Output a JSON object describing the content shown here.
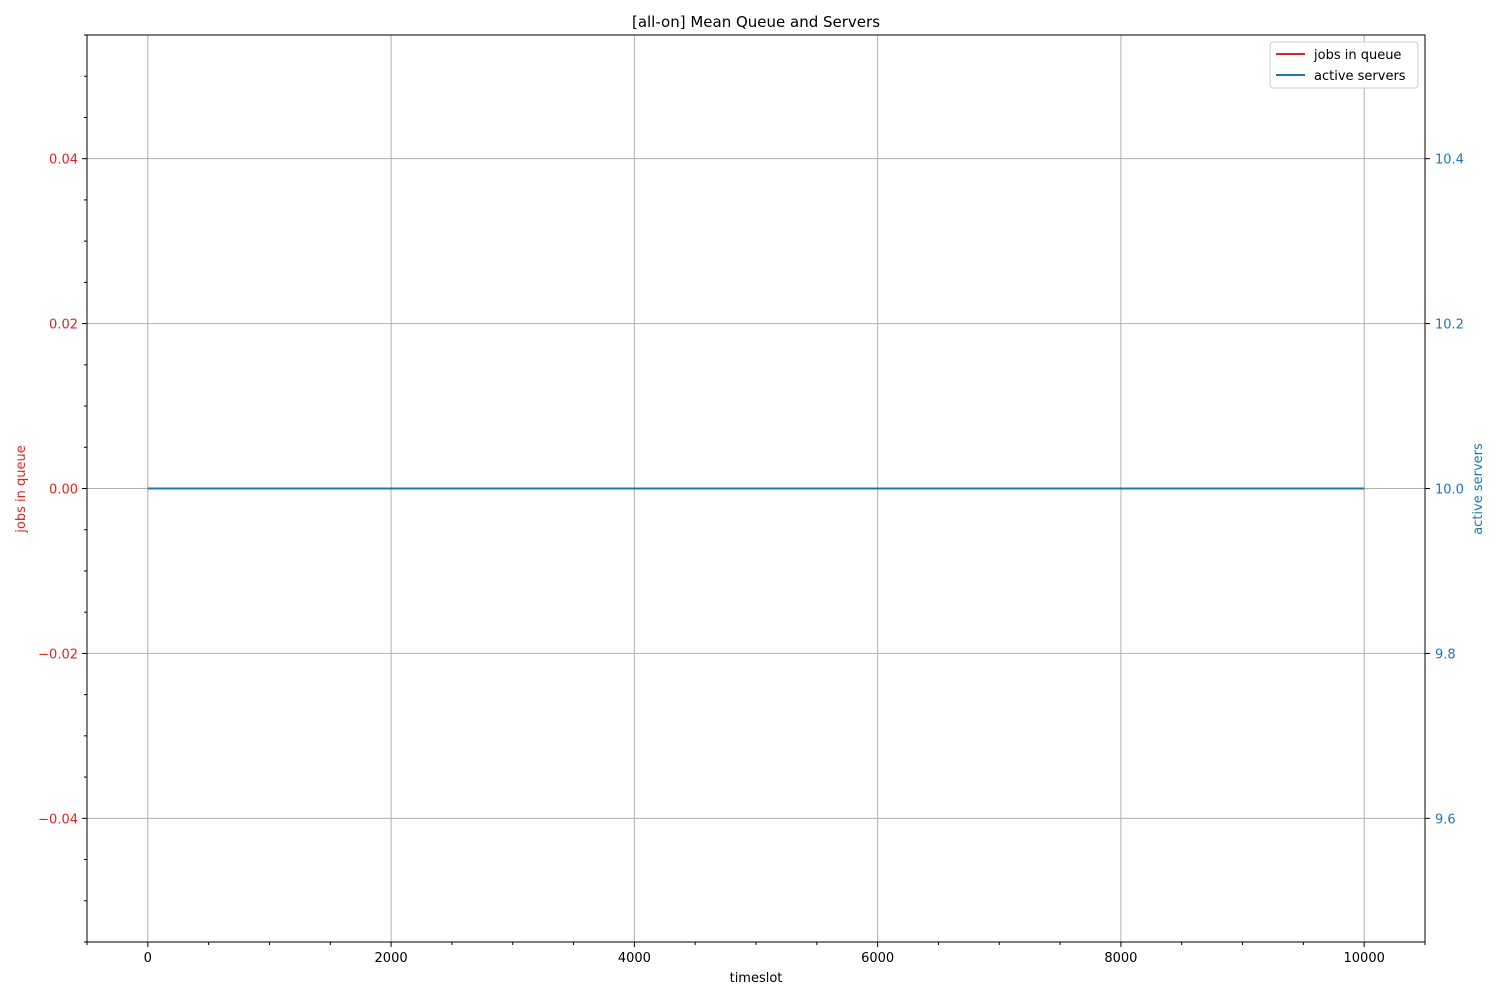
{
  "chart_data": {
    "type": "line",
    "title": "[all-on] Mean Queue and Servers",
    "xlabel": "timeslot",
    "ylabel_left": "jobs in queue",
    "ylabel_right": "active servers",
    "xlim": [
      -500,
      10500
    ],
    "ylim_left": [
      -0.055,
      0.055
    ],
    "ylim_right": [
      9.45,
      10.55
    ],
    "x_ticks": [
      0,
      2000,
      4000,
      6000,
      8000,
      10000
    ],
    "x_tick_labels": [
      "0",
      "2000",
      "4000",
      "6000",
      "8000",
      "10000"
    ],
    "y_left_ticks": [
      0.04,
      0.02,
      0.0,
      -0.02,
      -0.04
    ],
    "y_left_tick_labels": [
      "0.04",
      "0.02",
      "0.00",
      "−0.02",
      "−0.04"
    ],
    "y_right_ticks": [
      10.4,
      10.2,
      10.0,
      9.8,
      9.6
    ],
    "y_right_tick_labels": [
      "10.4",
      "10.2",
      "10.0",
      "9.8",
      "9.6"
    ],
    "grid": true,
    "legend_position": "top-right",
    "colors": {
      "left": "#d62728",
      "right": "#1f77b4"
    },
    "series": [
      {
        "name": "jobs in queue",
        "axis": "left",
        "color": "#d62728",
        "x": [
          0,
          10000
        ],
        "y": [
          0,
          0
        ]
      },
      {
        "name": "active servers",
        "axis": "right",
        "color": "#1f77b4",
        "x": [
          0,
          10000
        ],
        "y": [
          10,
          10
        ]
      }
    ]
  }
}
